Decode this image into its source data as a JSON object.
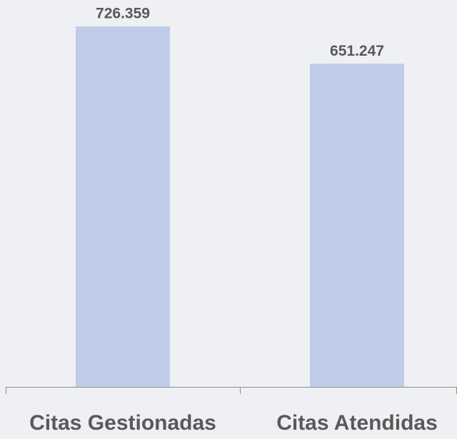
{
  "chart_data": {
    "type": "bar",
    "categories": [
      "Citas Gestionadas",
      "Citas Atendidas"
    ],
    "values": [
      726359,
      651247
    ],
    "value_labels": [
      "726.359",
      "651.247"
    ],
    "color": "#bfcde8"
  }
}
